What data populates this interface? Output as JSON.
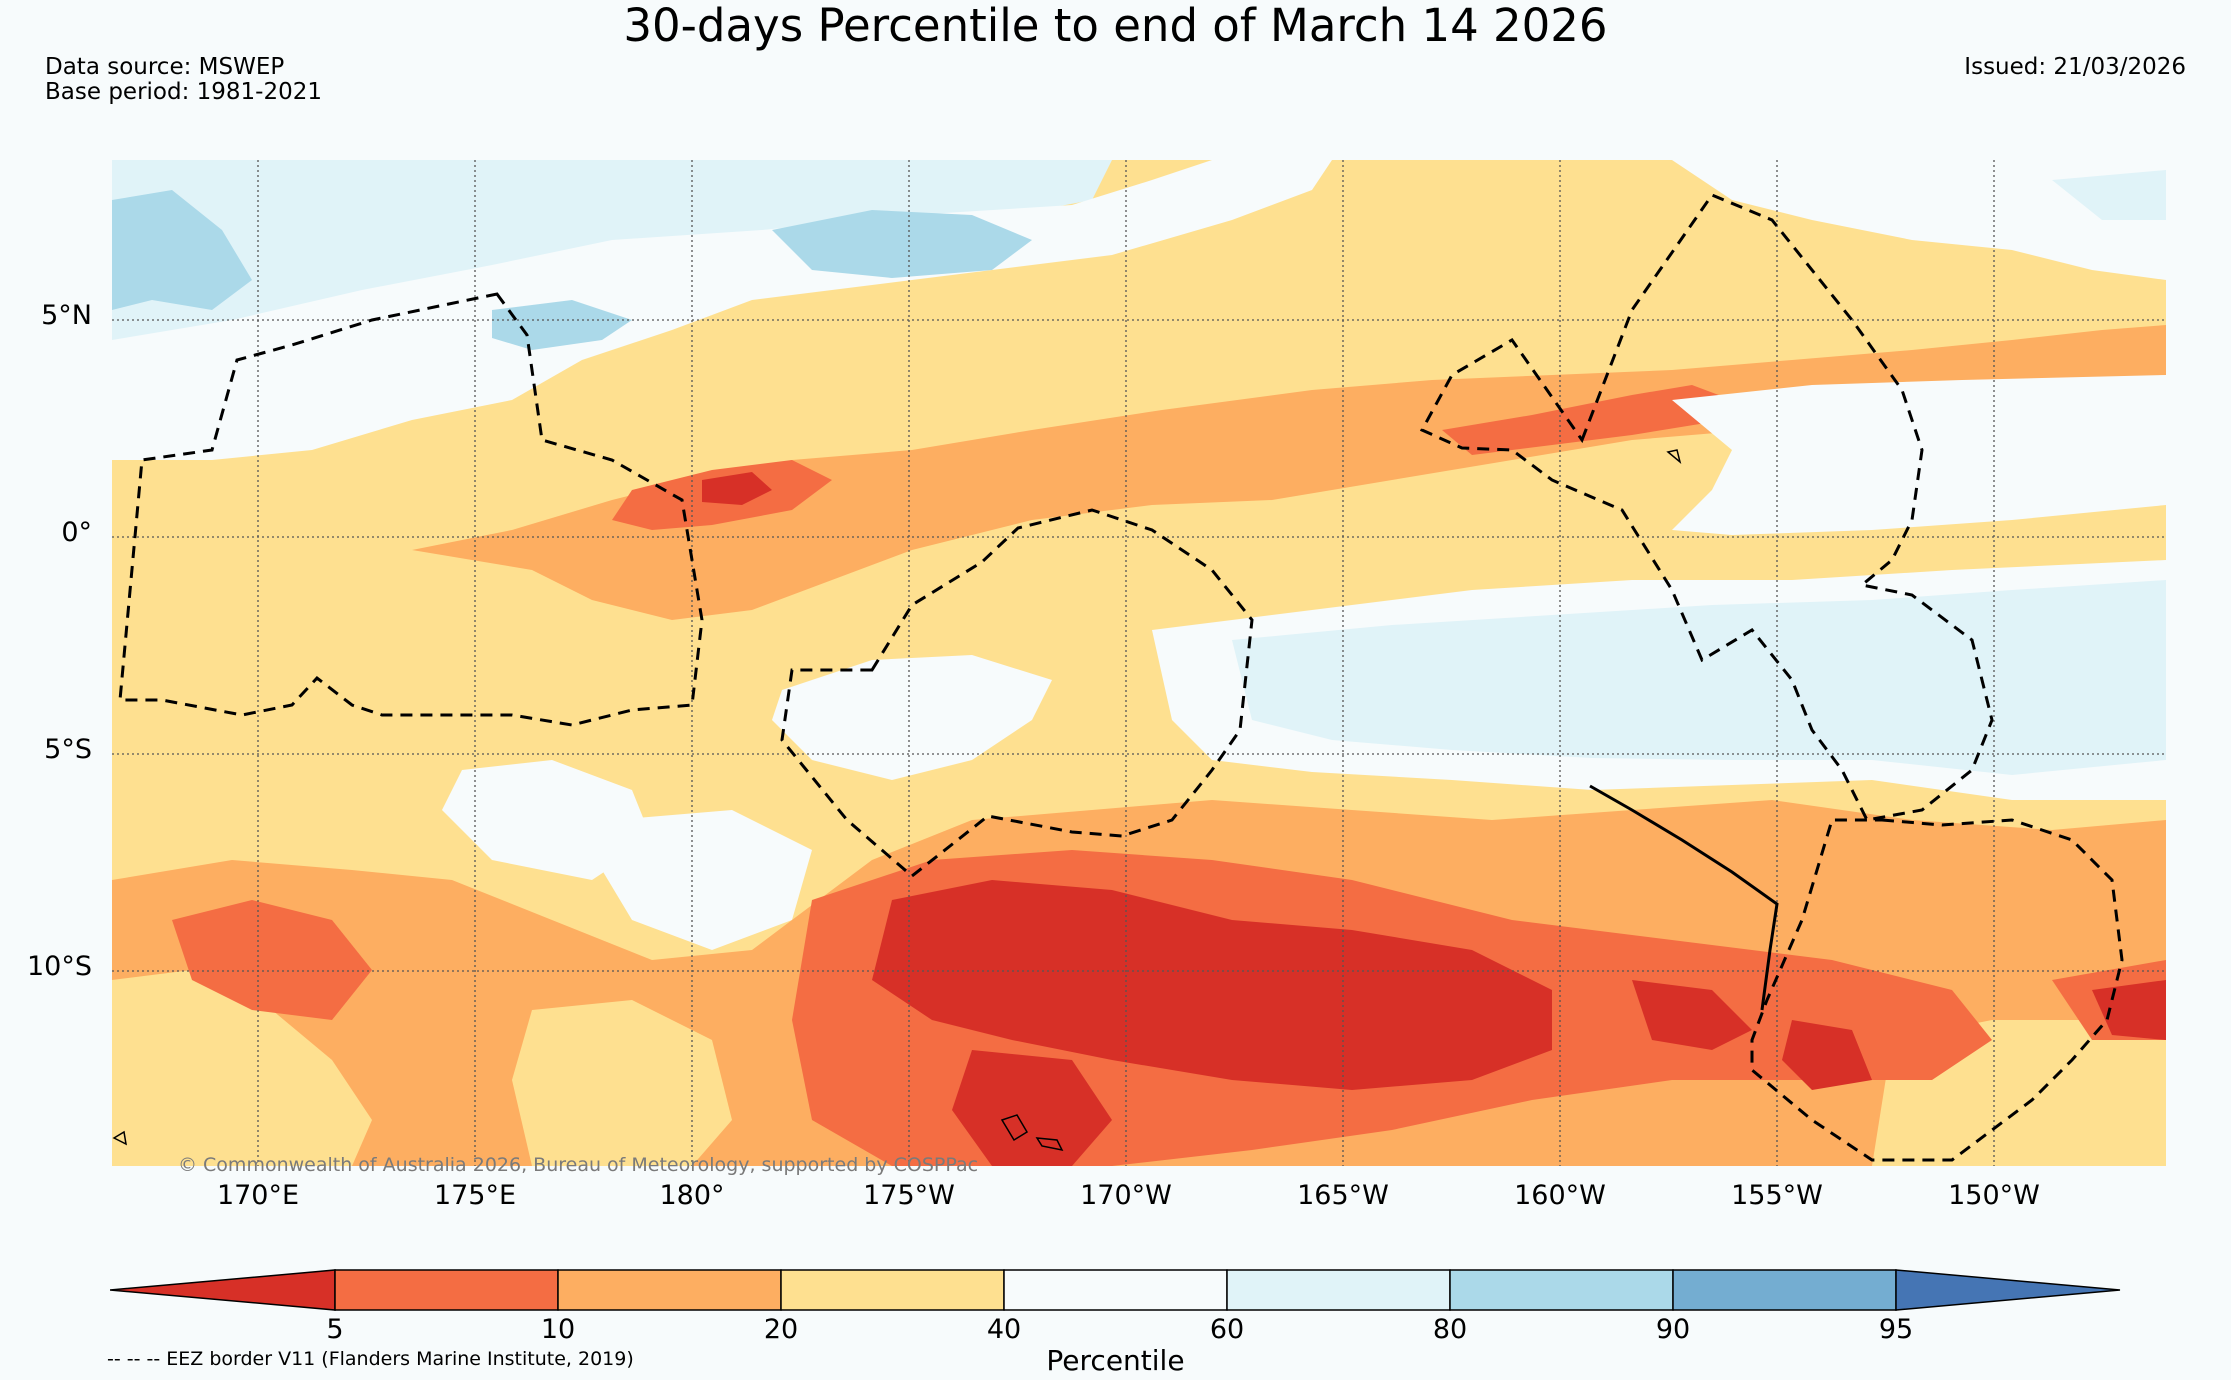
{
  "title": "30-days Percentile to end of March 14 2026",
  "data_source": "Data source: MSWEP",
  "base_period": "Base period: 1981-2021",
  "issued": "Issued: 21/03/2026",
  "copyright": "© Commonwealth of Australia 2026, Bureau of Meteorology, supported by COSPPac",
  "eez_note": "-- -- -- EEZ border V11 (Flanders Marine Institute, 2019)",
  "lat_labels": [
    "5°N",
    "0°",
    "5°S",
    "10°S"
  ],
  "lon_labels": [
    "170°E",
    "175°E",
    "180°",
    "175°W",
    "170°W",
    "165°W",
    "160°W",
    "155°W",
    "150°W"
  ],
  "colorbar": {
    "label": "Percentile",
    "ticks": [
      "5",
      "10",
      "20",
      "40",
      "60",
      "80",
      "90",
      "95"
    ],
    "colors": [
      "#d73027",
      "#f46d43",
      "#fdae61",
      "#fee090",
      "#f7fbfc",
      "#e0f3f8",
      "#abd9e9",
      "#74add1",
      "#4575b4"
    ]
  }
}
